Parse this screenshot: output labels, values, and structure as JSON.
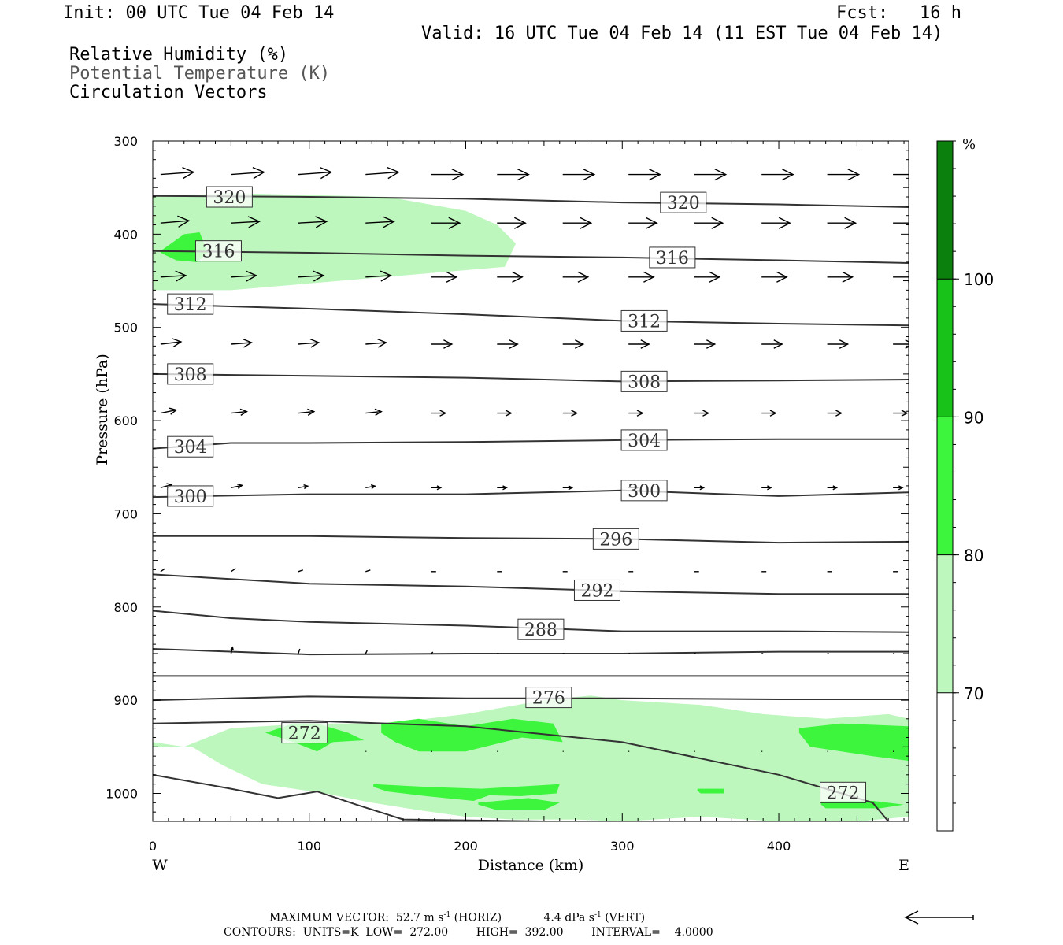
{
  "header": {
    "init": "Init: 00 UTC Tue 04 Feb 14",
    "fcst": "Fcst:   16 h",
    "valid": "Valid: 16 UTC Tue 04 Feb 14 (11 EST Tue 04 Feb 14)",
    "field1": "Relative Humidity (%)",
    "field2": "Potential Temperature (K)",
    "field3": "Circulation Vectors"
  },
  "footer": {
    "max_vector_label": "MAXIMUM VECTOR:",
    "max_horiz": "52.7 m s",
    "horiz_unit": "(HORIZ)",
    "max_vert": "4.4 dPa s",
    "vert_unit": "(VERT)",
    "sup": "-1",
    "contours": "CONTOURS:  UNITS=K  LOW=  272.00        HIGH=  392.00        INTERVAL=    4.0000"
  },
  "colors": {
    "rh70": "#bdf7bd",
    "rh80": "#3df53d",
    "rh90": "#19c219",
    "rh100": "#0c800c",
    "contour": "#333333"
  },
  "chart_data": {
    "type": "cross-section",
    "title": "",
    "xlabel": "Distance (km)",
    "ylabel": "Pressure (hPa)",
    "xlim": [
      0,
      483
    ],
    "ylim": [
      1030,
      300
    ],
    "x_ticks": [
      0,
      100,
      200,
      300,
      400
    ],
    "y_ticks": [
      300,
      400,
      500,
      600,
      700,
      800,
      900,
      1000
    ],
    "x_end_labels": {
      "left": "W",
      "right": "E"
    },
    "colorbar": {
      "unit": "%",
      "levels": [
        70,
        80,
        90,
        100
      ],
      "colors": [
        "#ffffff",
        "#bdf7bd",
        "#3df53d",
        "#19c219",
        "#0c800c"
      ]
    },
    "contour_labels": [
      {
        "value": "320",
        "x": 49,
        "p": 360
      },
      {
        "value": "320",
        "x": 339,
        "p": 366
      },
      {
        "value": "316",
        "x": 42,
        "p": 418
      },
      {
        "value": "316",
        "x": 332,
        "p": 425
      },
      {
        "value": "312",
        "x": 24,
        "p": 475
      },
      {
        "value": "312",
        "x": 314,
        "p": 493
      },
      {
        "value": "308",
        "x": 24,
        "p": 550
      },
      {
        "value": "308",
        "x": 314,
        "p": 558
      },
      {
        "value": "304",
        "x": 24,
        "p": 628
      },
      {
        "value": "304",
        "x": 314,
        "p": 621
      },
      {
        "value": "300",
        "x": 24,
        "p": 681
      },
      {
        "value": "300",
        "x": 314,
        "p": 675
      },
      {
        "value": "296",
        "x": 296,
        "p": 727
      },
      {
        "value": "292",
        "x": 284,
        "p": 782
      },
      {
        "value": "288",
        "x": 248,
        "p": 824
      },
      {
        "value": "276",
        "x": 253,
        "p": 897
      },
      {
        "value": "272",
        "x": 97,
        "p": 935
      },
      {
        "value": "272",
        "x": 441,
        "p": 999
      }
    ],
    "isentropes": [
      {
        "theta": 320,
        "x": [
          0,
          100,
          200,
          300,
          400,
          483
        ],
        "p": [
          359,
          360,
          362,
          366,
          368,
          371
        ]
      },
      {
        "theta": 316,
        "x": [
          0,
          100,
          200,
          300,
          400,
          483
        ],
        "p": [
          418,
          420,
          423,
          425,
          428,
          431
        ]
      },
      {
        "theta": 312,
        "x": [
          0,
          100,
          200,
          300,
          400,
          483
        ],
        "p": [
          475,
          480,
          486,
          493,
          496,
          498
        ]
      },
      {
        "theta": 308,
        "x": [
          0,
          100,
          200,
          300,
          400,
          483
        ],
        "p": [
          550,
          552,
          554,
          558,
          557,
          556
        ]
      },
      {
        "theta": 304,
        "x": [
          0,
          50,
          100,
          200,
          300,
          400,
          483
        ],
        "p": [
          630,
          624,
          624,
          623,
          621,
          620,
          620
        ]
      },
      {
        "theta": 300,
        "x": [
          0,
          100,
          200,
          300,
          400,
          483
        ],
        "p": [
          682,
          679,
          679,
          675,
          681,
          677
        ]
      },
      {
        "theta": 296,
        "x": [
          0,
          100,
          200,
          300,
          400,
          483
        ],
        "p": [
          724,
          724,
          726,
          727,
          731,
          730
        ]
      },
      {
        "theta": 292,
        "x": [
          0,
          100,
          200,
          300,
          400,
          483
        ],
        "p": [
          765,
          775,
          778,
          783,
          786,
          786
        ]
      },
      {
        "theta": 288,
        "x": [
          0,
          50,
          100,
          200,
          300,
          400,
          483
        ],
        "p": [
          804,
          812,
          816,
          820,
          826,
          826,
          827
        ]
      },
      {
        "theta": 284,
        "x": [
          0,
          100,
          200,
          300,
          400,
          483
        ],
        "p": [
          845,
          851,
          850,
          850,
          848,
          848
        ]
      },
      {
        "theta": 280,
        "x": [
          0,
          100,
          200,
          300,
          400,
          483
        ],
        "p": [
          874,
          874,
          874,
          874,
          874,
          874
        ]
      },
      {
        "theta": 276,
        "x": [
          0,
          100,
          200,
          300,
          400,
          483
        ],
        "p": [
          900,
          896,
          898,
          898,
          899,
          899
        ]
      },
      {
        "theta": 272,
        "x": [
          0,
          100,
          200,
          300,
          400,
          460,
          470
        ],
        "p": [
          925,
          922,
          928,
          945,
          980,
          1010,
          1030
        ]
      },
      {
        "theta": 268,
        "x": [
          0,
          50,
          80,
          105,
          130,
          160,
          250,
          350,
          483
        ],
        "p": [
          980,
          995,
          1005,
          998,
          1012,
          1028,
          1030,
          1030,
          1030
        ]
      }
    ],
    "rh_regions": [
      {
        "level": 70,
        "x": [
          0,
          50,
          150,
          200,
          220,
          232,
          225,
          120,
          50,
          0
        ],
        "p": [
          360,
          356,
          360,
          375,
          390,
          410,
          435,
          450,
          460,
          460
        ]
      },
      {
        "level": 80,
        "x": [
          5,
          20,
          30,
          35,
          28,
          15,
          5
        ],
        "p": [
          418,
          400,
          398,
          420,
          430,
          428,
          420
        ]
      },
      {
        "level": 70,
        "x": [
          0,
          20,
          50,
          100,
          150,
          200,
          250,
          280,
          300,
          350,
          390,
          430,
          470,
          483,
          483,
          450,
          400,
          350,
          300,
          270,
          230,
          200,
          170,
          140,
          110,
          90,
          70,
          45,
          25,
          0
        ],
        "p": [
          945,
          950,
          930,
          925,
          925,
          915,
          900,
          895,
          900,
          905,
          915,
          920,
          915,
          920,
          1025,
          1030,
          1030,
          1025,
          1030,
          1028,
          1028,
          1025,
          1018,
          1010,
          1000,
          995,
          990,
          970,
          950,
          950
        ]
      },
      {
        "level": 80,
        "x": [
          72,
          90,
          105,
          125,
          135,
          115,
          105,
          90,
          72
        ],
        "p": [
          935,
          925,
          925,
          935,
          943,
          945,
          955,
          945,
          935
        ]
      },
      {
        "level": 80,
        "x": [
          146,
          170,
          200,
          230,
          256,
          262,
          236,
          200,
          170,
          155,
          146
        ],
        "p": [
          925,
          920,
          928,
          920,
          925,
          945,
          940,
          955,
          955,
          945,
          935
        ]
      },
      {
        "level": 80,
        "x": [
          141,
          175,
          210,
          260,
          258,
          235,
          215,
          205,
          175,
          150,
          141
        ],
        "p": [
          990,
          993,
          995,
          990,
          1000,
          1003,
          1002,
          1008,
          1003,
          998,
          993
        ]
      },
      {
        "level": 80,
        "x": [
          208,
          240,
          260,
          250,
          220,
          208
        ],
        "p": [
          1010,
          1005,
          1010,
          1018,
          1018,
          1012
        ]
      },
      {
        "level": 80,
        "x": [
          348,
          365,
          365,
          350,
          348
        ],
        "p": [
          995,
          995,
          1000,
          1000,
          997
        ]
      },
      {
        "level": 80,
        "x": [
          413,
          440,
          483,
          483,
          460,
          420,
          413
        ],
        "p": [
          930,
          925,
          928,
          965,
          960,
          950,
          935
        ]
      },
      {
        "level": 80,
        "x": [
          427,
          460,
          480,
          465,
          430,
          427
        ],
        "p": [
          1008,
          1008,
          1012,
          1016,
          1016,
          1012
        ]
      }
    ],
    "vectors": [
      {
        "p": 336,
        "x": [
          5,
          50,
          93,
          136,
          178,
          220,
          262,
          304,
          346,
          389,
          431,
          473
        ],
        "dx": [
          42,
          42,
          42,
          42,
          40,
          40,
          40,
          40,
          40,
          40,
          40,
          40
        ],
        "dp": [
          -3,
          -3,
          -3,
          -3,
          0,
          0,
          0,
          0,
          0,
          0,
          0,
          0
        ]
      },
      {
        "p": 388,
        "x": [
          5,
          50,
          93,
          136,
          178,
          220,
          262,
          304,
          346,
          389,
          431,
          473
        ],
        "dx": [
          36,
          36,
          36,
          36,
          36,
          36,
          36,
          36,
          36,
          36,
          36,
          36
        ],
        "dp": [
          -3,
          -2,
          -2,
          -2,
          0,
          0,
          0,
          0,
          0,
          0,
          0,
          0
        ]
      },
      {
        "p": 446,
        "x": [
          5,
          50,
          93,
          136,
          178,
          220,
          262,
          304,
          346,
          389,
          431,
          473
        ],
        "dx": [
          32,
          32,
          32,
          32,
          32,
          32,
          32,
          32,
          32,
          32,
          32,
          32
        ],
        "dp": [
          -2,
          -2,
          -2,
          -2,
          0,
          0,
          0,
          0,
          0,
          0,
          0,
          0
        ]
      },
      {
        "p": 518,
        "x": [
          5,
          50,
          93,
          136,
          178,
          220,
          262,
          304,
          346,
          389,
          431,
          473
        ],
        "dx": [
          26,
          26,
          26,
          26,
          26,
          26,
          26,
          26,
          26,
          26,
          26,
          26
        ],
        "dp": [
          -3,
          -2,
          -2,
          -2,
          0,
          0,
          0,
          0,
          0,
          0,
          0,
          0
        ]
      },
      {
        "p": 592,
        "x": [
          5,
          50,
          93,
          136,
          178,
          220,
          262,
          304,
          346,
          389,
          431,
          473
        ],
        "dx": [
          20,
          20,
          20,
          20,
          18,
          18,
          18,
          18,
          18,
          18,
          18,
          18
        ],
        "dp": [
          -4,
          -2,
          -2,
          -2,
          0,
          0,
          0,
          0,
          0,
          0,
          0,
          0
        ]
      },
      {
        "p": 672,
        "x": [
          5,
          50,
          93,
          136,
          178,
          220,
          262,
          304,
          346,
          389,
          431,
          473
        ],
        "dx": [
          14,
          14,
          12,
          12,
          12,
          12,
          12,
          12,
          12,
          12,
          12,
          12
        ],
        "dp": [
          -4,
          -3,
          -2,
          -2,
          0,
          0,
          0,
          0,
          0,
          0,
          0,
          0
        ]
      },
      {
        "p": 762,
        "x": [
          5,
          50,
          93,
          136,
          178,
          220,
          262,
          304,
          346,
          389,
          431,
          473
        ],
        "dx": [
          6,
          6,
          6,
          6,
          6,
          6,
          6,
          6,
          6,
          6,
          6,
          6
        ],
        "dp": [
          -4,
          -4,
          -2,
          -2,
          0,
          0,
          0,
          0,
          0,
          0,
          0,
          0
        ]
      },
      {
        "p": 850,
        "x": [
          50,
          93,
          136,
          178,
          220,
          262,
          304,
          346,
          389,
          431,
          473
        ],
        "dx": [
          2,
          2,
          2,
          2,
          2,
          2,
          2,
          2,
          2,
          2,
          2
        ],
        "dp": [
          -8,
          -6,
          -4,
          -2,
          0,
          0,
          0,
          0,
          0,
          0,
          0
        ]
      },
      {
        "p": 955,
        "x": [
          136,
          178,
          220,
          262,
          304,
          346,
          389,
          431,
          473
        ],
        "dx": [
          1,
          1,
          1,
          1,
          1,
          1,
          1,
          1,
          1
        ],
        "dp": [
          0,
          0,
          0,
          0,
          0,
          0,
          0,
          0,
          0
        ]
      }
    ]
  }
}
